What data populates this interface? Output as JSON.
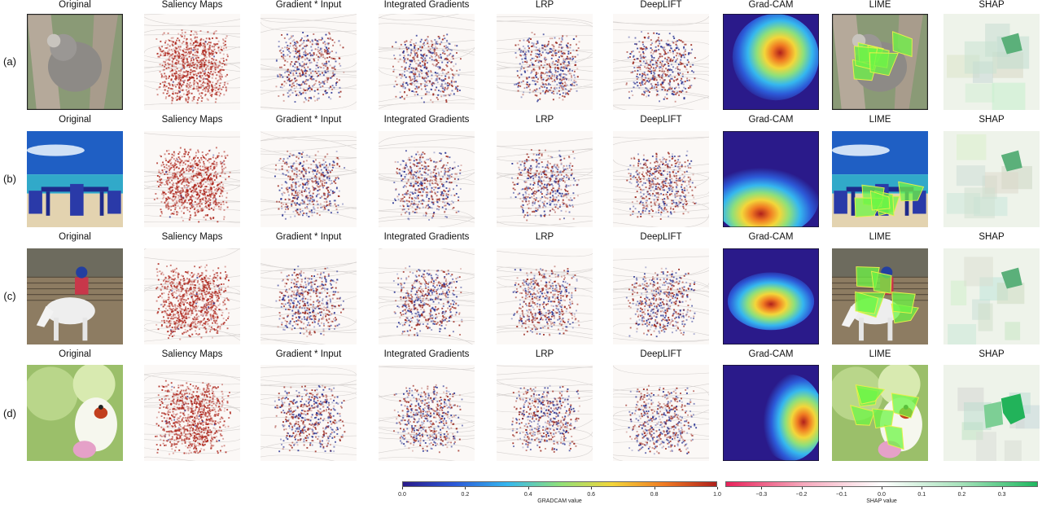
{
  "columns": [
    "Original",
    "Saliency Maps",
    "Gradient * Input",
    "Integrated Gradients",
    "LRP",
    "DeepLIFT",
    "Grad-CAM",
    "LIME",
    "SHAP"
  ],
  "rows": [
    {
      "label": "(a)",
      "subject": "koala"
    },
    {
      "label": "(b)",
      "subject": "beach-chairs"
    },
    {
      "label": "(c)",
      "subject": "horse-rider"
    },
    {
      "label": "(d)",
      "subject": "ladybug-on-leaf"
    }
  ],
  "colorbars": {
    "gradcam": {
      "label": "GRADCAM value",
      "ticks": [
        "0.0",
        "0.2",
        "0.4",
        "0.6",
        "0.8",
        "1.0"
      ],
      "range": [
        0,
        1
      ],
      "colors": [
        "#2a1a8a",
        "#2c5ad8",
        "#35b7ef",
        "#8fe07a",
        "#f3d63a",
        "#f07a22",
        "#b0201c"
      ]
    },
    "shap": {
      "label": "SHAP value",
      "ticks": [
        "−0.3",
        "−0.2",
        "−0.1",
        "0.0",
        "0.1",
        "0.2",
        "0.3"
      ],
      "range": [
        -0.39,
        0.39
      ],
      "colors": [
        "#e8225a",
        "#f6a9bd",
        "#ffffff",
        "#a9e3bd",
        "#1fb860"
      ]
    }
  }
}
